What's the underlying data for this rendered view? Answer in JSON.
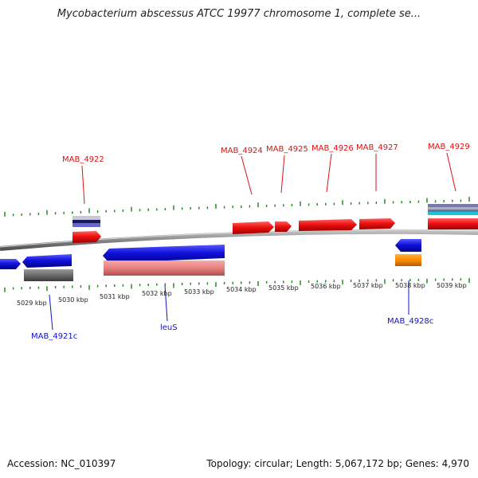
{
  "title": "Mycobacterium abscessus ATCC 19977 chromosome 1, complete se...",
  "footer": {
    "accession": "Accession: NC_010397",
    "summary": "Topology: circular; Length: 5,067,172 bp; Genes: 4,970"
  },
  "colors": {
    "forward_gene": "#ee1111",
    "reverse_gene": "#1111dd",
    "tick": "#2a8a2a",
    "backbone": "#808080",
    "forward_label": "#dd1111",
    "reverse_label": "#1111cc"
  },
  "scale_labels": [
    "5029 kbp",
    "5030 kbp",
    "5031 kbp",
    "5032 kbp",
    "5033 kbp",
    "5034 kbp",
    "5035 kbp",
    "5036 kbp",
    "5037 kbp",
    "5038 kbp",
    "5039 kbp"
  ],
  "gene_labels_top": [
    "MAB_4922",
    "MAB_4924",
    "MAB_4925",
    "MAB_4926",
    "MAB_4927",
    "MAB_4929"
  ],
  "gene_labels_bottom": [
    "MAB_4921c",
    "leuS",
    "MAB_4928c"
  ]
}
